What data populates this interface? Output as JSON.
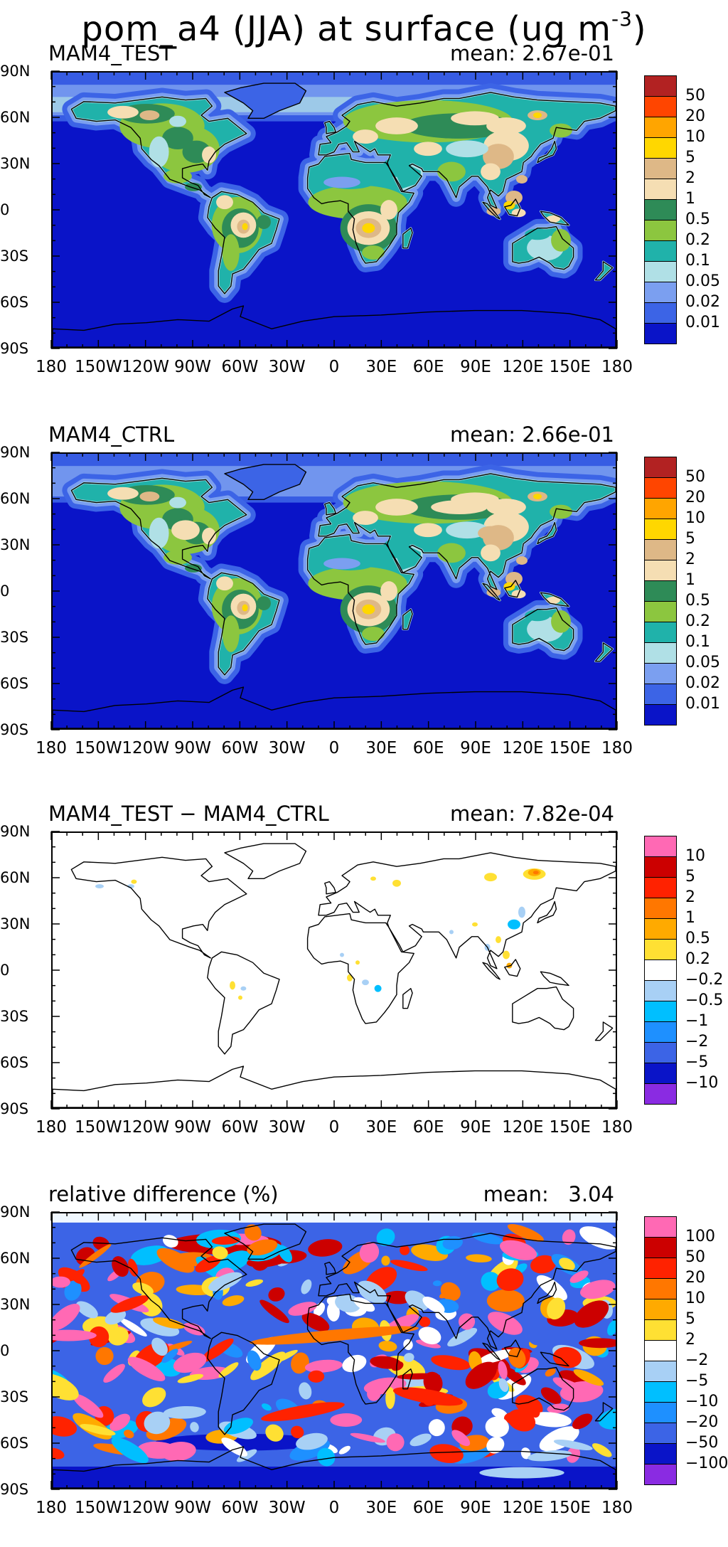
{
  "title": {
    "prefix": "pom_a4 (JJA) at surface (ug m",
    "sup": "-3",
    "suffix": ")"
  },
  "lat_ticks": [
    "90N",
    "60N",
    "30N",
    "0",
    "30S",
    "60S",
    "90S"
  ],
  "lon_ticks": [
    "180",
    "150W",
    "120W",
    "90W",
    "60W",
    "30W",
    "0",
    "30E",
    "60E",
    "90E",
    "120E",
    "150E",
    "180"
  ],
  "chart_data": [
    {
      "type": "heatmap",
      "label": "MAM4_TEST",
      "mean": "mean: 2.67e-01",
      "xlim": [
        -180,
        180
      ],
      "ylim": [
        -90,
        90
      ],
      "colorbar": {
        "labels": [
          "50",
          "20",
          "10",
          "5",
          "2",
          "1",
          "0.5",
          "0.2",
          "0.1",
          "0.05",
          "0.02",
          "0.01"
        ],
        "colors": [
          "#b22222",
          "#ff4500",
          "#ffa500",
          "#ffd700",
          "#deb887",
          "#f5deb3",
          "#2e8b57",
          "#8cc63f",
          "#20b2aa",
          "#b0e0e6",
          "#7b9ff0",
          "#3c64e6",
          "#0a14c8"
        ]
      }
    },
    {
      "type": "heatmap",
      "label": "MAM4_CTRL",
      "mean": "mean: 2.66e-01",
      "xlim": [
        -180,
        180
      ],
      "ylim": [
        -90,
        90
      ],
      "colorbar": {
        "labels": [
          "50",
          "20",
          "10",
          "5",
          "2",
          "1",
          "0.5",
          "0.2",
          "0.1",
          "0.05",
          "0.02",
          "0.01"
        ],
        "colors": [
          "#b22222",
          "#ff4500",
          "#ffa500",
          "#ffd700",
          "#deb887",
          "#f5deb3",
          "#2e8b57",
          "#8cc63f",
          "#20b2aa",
          "#b0e0e6",
          "#7b9ff0",
          "#3c64e6",
          "#0a14c8"
        ]
      }
    },
    {
      "type": "heatmap",
      "label": "MAM4_TEST − MAM4_CTRL",
      "mean": "mean: 7.82e-04",
      "xlim": [
        -180,
        180
      ],
      "ylim": [
        -90,
        90
      ],
      "colorbar": {
        "labels": [
          "10",
          "5",
          "2",
          "1",
          "0.5",
          "0.2",
          "−0.2",
          "−0.5",
          "−1",
          "−2",
          "−5",
          "−10"
        ],
        "colors": [
          "#ff69b4",
          "#cc0000",
          "#ff2200",
          "#ff7700",
          "#ffaa00",
          "#ffe033",
          "#ffffff",
          "#a8d0f5",
          "#00bfff",
          "#1e90ff",
          "#3c64e6",
          "#0a14c8",
          "#8a2be2"
        ]
      }
    },
    {
      "type": "heatmap",
      "label": "relative difference (%)",
      "mean": "mean:   3.04",
      "xlim": [
        -180,
        180
      ],
      "ylim": [
        -90,
        90
      ],
      "colorbar": {
        "labels": [
          "100",
          "50",
          "20",
          "10",
          "5",
          "2",
          "−2",
          "−5",
          "−10",
          "−20",
          "−50",
          "−100"
        ],
        "colors": [
          "#ff69b4",
          "#cc0000",
          "#ff2200",
          "#ff7700",
          "#ffaa00",
          "#ffe033",
          "#ffffff",
          "#a8d0f5",
          "#00bfff",
          "#1e90ff",
          "#3c64e6",
          "#0a14c8",
          "#8a2be2"
        ]
      }
    }
  ]
}
